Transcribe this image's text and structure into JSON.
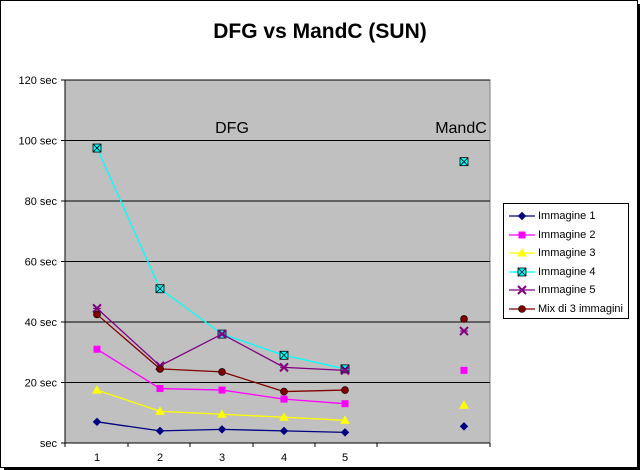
{
  "chart_data": {
    "type": "line",
    "title": "DFG vs MandC (SUN)",
    "categories": [
      "1",
      "2",
      "3",
      "4",
      "5"
    ],
    "y_ticks": [
      "sec",
      "20 sec",
      "40 sec",
      "60 sec",
      "80 sec",
      "100 sec",
      "120 sec"
    ],
    "ylim": [
      0,
      120
    ],
    "grid": true,
    "legend_position": "right",
    "annotations": [
      {
        "text": "DFG",
        "position": "top-center"
      },
      {
        "text": "MandC",
        "position": "top-right"
      }
    ],
    "series": [
      {
        "name": "Immagine 1",
        "color": "#000080",
        "marker": "diamond",
        "values": [
          7,
          4,
          4.5,
          4,
          3.5
        ],
        "mandc": 5.5
      },
      {
        "name": "Immagine 2",
        "color": "#ff00ff",
        "marker": "square",
        "values": [
          31,
          18,
          17.5,
          14.5,
          13
        ],
        "mandc": 24
      },
      {
        "name": "Immagine 3",
        "color": "#ffff00",
        "marker": "triangle",
        "values": [
          17.5,
          10.5,
          9.5,
          8.5,
          7.5
        ],
        "mandc": 12.5
      },
      {
        "name": "Immagine 4",
        "color": "#00ffff",
        "marker": "square-x",
        "values": [
          97.5,
          51,
          36,
          29,
          24.5
        ],
        "mandc": 93
      },
      {
        "name": "Immagine 5",
        "color": "#800080",
        "marker": "x",
        "values": [
          44.5,
          25.5,
          36,
          25,
          24
        ],
        "mandc": 37
      },
      {
        "name": "Mix di 3 immagini",
        "color": "#800000",
        "marker": "circle",
        "values": [
          42.5,
          24.5,
          23.5,
          17,
          17.5
        ],
        "mandc": 41
      }
    ]
  }
}
